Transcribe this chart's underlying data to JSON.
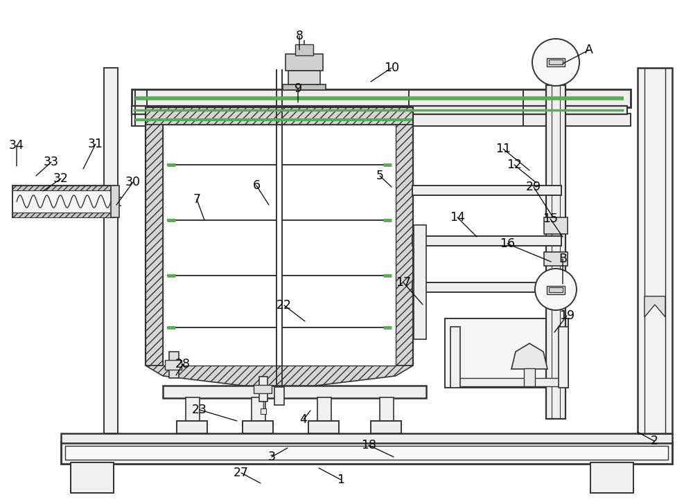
{
  "bg": "#ffffff",
  "lc": "#333333",
  "gc": "#5aaa5a",
  "figsize": [
    10.0,
    7.28
  ],
  "dpi": 100,
  "annotations": [
    [
      "1",
      492,
      693,
      460,
      676
    ],
    [
      "2",
      944,
      637,
      920,
      624
    ],
    [
      "3",
      392,
      660,
      415,
      647
    ],
    [
      "4",
      438,
      606,
      448,
      593
    ],
    [
      "5",
      548,
      254,
      565,
      270
    ],
    [
      "6",
      370,
      268,
      388,
      296
    ],
    [
      "7",
      284,
      288,
      295,
      318
    ],
    [
      "8",
      432,
      52,
      432,
      72
    ],
    [
      "9",
      430,
      128,
      430,
      148
    ],
    [
      "10",
      565,
      98,
      535,
      118
    ],
    [
      "11",
      726,
      215,
      764,
      246
    ],
    [
      "12",
      742,
      238,
      774,
      264
    ],
    [
      "14",
      660,
      314,
      688,
      342
    ],
    [
      "15",
      794,
      316,
      812,
      342
    ],
    [
      "16",
      732,
      352,
      795,
      378
    ],
    [
      "17",
      582,
      408,
      610,
      440
    ],
    [
      "18",
      532,
      643,
      568,
      660
    ],
    [
      "19",
      818,
      456,
      800,
      480
    ],
    [
      "22",
      410,
      441,
      440,
      464
    ],
    [
      "23",
      288,
      592,
      342,
      608
    ],
    [
      "27",
      348,
      683,
      376,
      698
    ],
    [
      "28",
      264,
      526,
      254,
      542
    ],
    [
      "29",
      770,
      270,
      798,
      314
    ],
    [
      "30",
      192,
      263,
      168,
      296
    ],
    [
      "31",
      138,
      208,
      120,
      244
    ],
    [
      "32",
      88,
      258,
      62,
      276
    ],
    [
      "33",
      74,
      234,
      52,
      254
    ],
    [
      "34",
      24,
      210,
      24,
      240
    ],
    [
      "A",
      850,
      72,
      812,
      92
    ],
    [
      "B",
      812,
      374,
      812,
      410
    ]
  ]
}
